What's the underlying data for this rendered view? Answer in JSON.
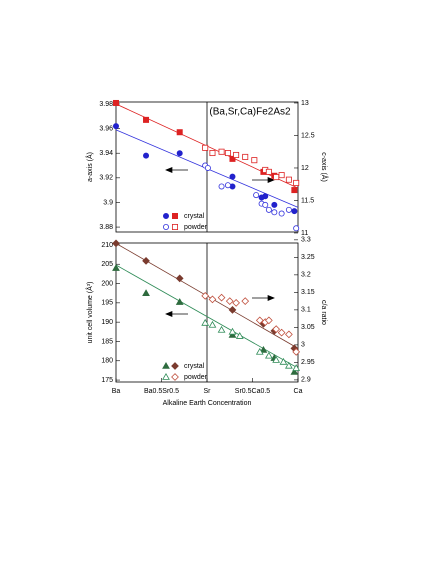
{
  "chart_data": [
    {
      "type": "scatter",
      "annotation": "(Ba,Sr,Ca)Fe2As2",
      "ylabel": "a-axis (Å)",
      "y2label": "c-axis (Å)",
      "xlim": [
        0,
        1
      ],
      "vline": 0.5,
      "ylim": [
        3.876,
        3.9816
      ],
      "yticks": [
        3.88,
        3.9,
        3.92,
        3.94,
        3.96,
        3.98
      ],
      "y2lim": [
        11.015,
        13.015
      ],
      "y2ticks": [
        11,
        11.5,
        12,
        12.5,
        13
      ],
      "series": [
        {
          "name": "crystal",
          "color": "#2222cc",
          "marker": "circle",
          "filled": true,
          "axis": "y",
          "x": [
            0,
            0.165,
            0.35,
            0.64,
            0.64,
            0.8,
            0.82,
            0.87,
            0.98
          ],
          "values": [
            3.962,
            3.938,
            3.94,
            3.921,
            3.913,
            3.904,
            3.905,
            3.898,
            3.893
          ]
        },
        {
          "name": "crystal",
          "color": "#dd2222",
          "marker": "square",
          "filled": true,
          "axis": "y2",
          "x": [
            0,
            0.165,
            0.35,
            0.64,
            0.81,
            0.87,
            0.98
          ],
          "values": [
            13.0,
            12.74,
            12.55,
            12.14,
            11.94,
            11.88,
            11.66
          ]
        },
        {
          "name": "powder",
          "color": "#3333dd",
          "marker": "circle",
          "filled": false,
          "axis": "y",
          "x": [
            0.49,
            0.505,
            0.58,
            0.615,
            0.77,
            0.8,
            0.82,
            0.84,
            0.87,
            0.91,
            0.95,
            0.99
          ],
          "values": [
            3.93,
            3.928,
            3.913,
            3.914,
            3.906,
            3.899,
            3.898,
            3.894,
            3.892,
            3.891,
            3.894,
            3.879
          ]
        },
        {
          "name": "powder",
          "color": "#dd2222",
          "marker": "square",
          "filled": false,
          "axis": "y2",
          "x": [
            0.49,
            0.53,
            0.58,
            0.615,
            0.66,
            0.71,
            0.76,
            0.82,
            0.84,
            0.88,
            0.91,
            0.95,
            0.99
          ],
          "values": [
            12.31,
            12.23,
            12.25,
            12.23,
            12.2,
            12.17,
            12.12,
            11.97,
            11.94,
            11.86,
            11.89,
            11.82,
            11.77
          ]
        }
      ],
      "fits": [
        {
          "color": "#dd2222",
          "axis": "y2",
          "x": [
            0,
            1
          ],
          "values": [
            12.985,
            11.69
          ]
        },
        {
          "color": "#3333dd",
          "axis": "y",
          "x": [
            0,
            1
          ],
          "values": [
            3.959,
            3.896
          ]
        }
      ]
    },
    {
      "type": "scatter",
      "ylabel": "unit cell volume (Å³)",
      "y2label": "c/a ratio",
      "xlabel": "Alkaline Earth Concentration",
      "xlim": [
        0,
        1
      ],
      "vline": 0.5,
      "xticks": [
        {
          "value": 0,
          "label": "Ba"
        },
        {
          "value": 0.25,
          "label": "Ba0.5Sr0.5"
        },
        {
          "value": 0.5,
          "label": "Sr"
        },
        {
          "value": 0.75,
          "label": "Sr0.5Ca0.5"
        },
        {
          "value": 1,
          "label": "Ca"
        }
      ],
      "ylim": [
        174.5,
        210.5
      ],
      "yticks": [
        175,
        180,
        185,
        190,
        195,
        200,
        205,
        210
      ],
      "y2lim": [
        2.894,
        3.291
      ],
      "y2ticks": [
        2.9,
        2.95,
        3,
        3.05,
        3.1,
        3.15,
        3.2,
        3.25,
        3.3
      ],
      "series": [
        {
          "name": "crystal",
          "color": "#2e6b3e",
          "marker": "triangle",
          "filled": true,
          "axis": "y",
          "x": [
            0,
            0.165,
            0.35,
            0.64,
            0.81,
            0.87,
            0.98
          ],
          "values": [
            204,
            197.5,
            195.2,
            186.7,
            182.8,
            180.7,
            177.1
          ]
        },
        {
          "name": "crystal",
          "color": "#7a3b2e",
          "marker": "diamond",
          "filled": true,
          "axis": "y2",
          "x": [
            0,
            0.165,
            0.35,
            0.64,
            0.81,
            0.87,
            0.98
          ],
          "values": [
            3.29,
            3.24,
            3.19,
            3.1,
            3.06,
            3.04,
            2.99
          ]
        },
        {
          "name": "powder",
          "color": "#2e8b57",
          "marker": "triangle",
          "filled": false,
          "axis": "y",
          "x": [
            0.49,
            0.53,
            0.58,
            0.64,
            0.68,
            0.79,
            0.84,
            0.88,
            0.92,
            0.95,
            0.99
          ],
          "values": [
            189.8,
            189.3,
            188,
            187.5,
            186.4,
            182.3,
            181.3,
            180.2,
            179.7,
            178.7,
            178.1
          ]
        },
        {
          "name": "powder",
          "color": "#c0503e",
          "marker": "diamond",
          "filled": false,
          "axis": "y2",
          "x": [
            0.49,
            0.53,
            0.58,
            0.625,
            0.66,
            0.71,
            0.79,
            0.82,
            0.84,
            0.88,
            0.91,
            0.95,
            0.99
          ],
          "values": [
            3.14,
            3.13,
            3.135,
            3.125,
            3.12,
            3.125,
            3.07,
            3.065,
            3.07,
            3.045,
            3.035,
            3.03,
            2.98
          ]
        }
      ],
      "fits": [
        {
          "color": "#7a3b2e",
          "axis": "y2",
          "x": [
            0,
            1
          ],
          "values": [
            3.29,
            2.99
          ]
        },
        {
          "color": "#2e8b57",
          "axis": "y",
          "x": [
            0,
            1
          ],
          "values": [
            204.8,
            178.1
          ]
        }
      ]
    }
  ]
}
